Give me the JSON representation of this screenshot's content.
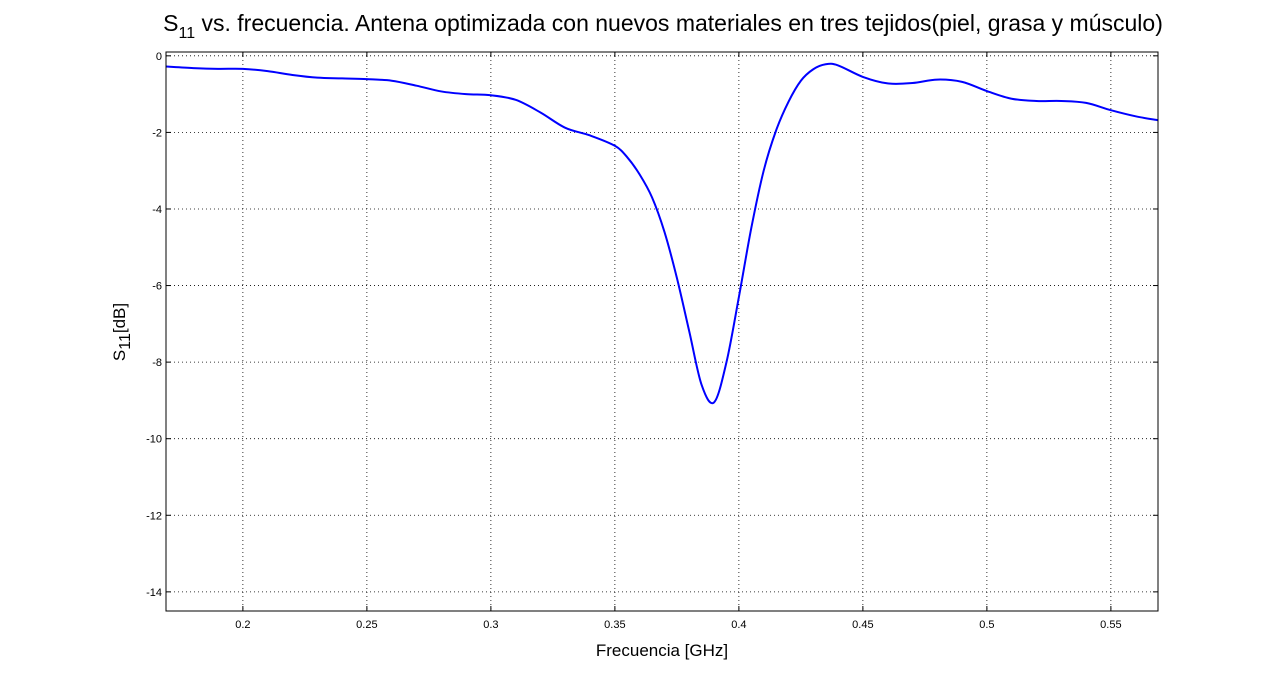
{
  "chart_data": {
    "type": "line",
    "title_main": "S",
    "title_sub": "11",
    "title_rest": " vs. frecuencia. Antena optimizada con nuevos materiales en tres tejidos(piel, grasa y músculo)",
    "xlabel": "Frecuencia [GHz]",
    "ylabel_main": "S",
    "ylabel_sub": "11",
    "ylabel_rest": "[dB]",
    "xlim": [
      0.169,
      0.569
    ],
    "ylim": [
      -14.5,
      0.1
    ],
    "xticks": [
      "0.2",
      "0.25",
      "0.3",
      "0.35",
      "0.4",
      "0.45",
      "0.5",
      "0.55"
    ],
    "xtick_values": [
      0.2,
      0.25,
      0.3,
      0.35,
      0.4,
      0.45,
      0.5,
      0.55
    ],
    "yticks": [
      "0",
      "-2",
      "-4",
      "-6",
      "-8",
      "-10",
      "-12",
      "-14"
    ],
    "ytick_values": [
      0,
      -2,
      -4,
      -6,
      -8,
      -10,
      -12,
      -14
    ],
    "grid": true,
    "line_color": "#0000ff",
    "series": [
      {
        "x": [
          0.169,
          0.18,
          0.19,
          0.2,
          0.21,
          0.22,
          0.23,
          0.24,
          0.25,
          0.26,
          0.27,
          0.28,
          0.29,
          0.3,
          0.31,
          0.32,
          0.33,
          0.34,
          0.35,
          0.355,
          0.36,
          0.365,
          0.37,
          0.375,
          0.38,
          0.385,
          0.39,
          0.395,
          0.4,
          0.405,
          0.41,
          0.415,
          0.42,
          0.425,
          0.43,
          0.435,
          0.44,
          0.45,
          0.46,
          0.47,
          0.48,
          0.49,
          0.5,
          0.51,
          0.52,
          0.53,
          0.54,
          0.55,
          0.56,
          0.569
        ],
        "y": [
          -0.28,
          -0.32,
          -0.34,
          -0.34,
          -0.4,
          -0.5,
          -0.57,
          -0.59,
          -0.61,
          -0.65,
          -0.78,
          -0.93,
          -1.0,
          -1.03,
          -1.15,
          -1.48,
          -1.88,
          -2.08,
          -2.35,
          -2.65,
          -3.1,
          -3.7,
          -4.6,
          -5.8,
          -7.2,
          -8.6,
          -9.05,
          -8.0,
          -6.3,
          -4.5,
          -3.0,
          -1.95,
          -1.2,
          -0.65,
          -0.35,
          -0.22,
          -0.25,
          -0.55,
          -0.72,
          -0.71,
          -0.62,
          -0.68,
          -0.92,
          -1.12,
          -1.18,
          -1.18,
          -1.23,
          -1.42,
          -1.58,
          -1.68
        ]
      }
    ]
  }
}
